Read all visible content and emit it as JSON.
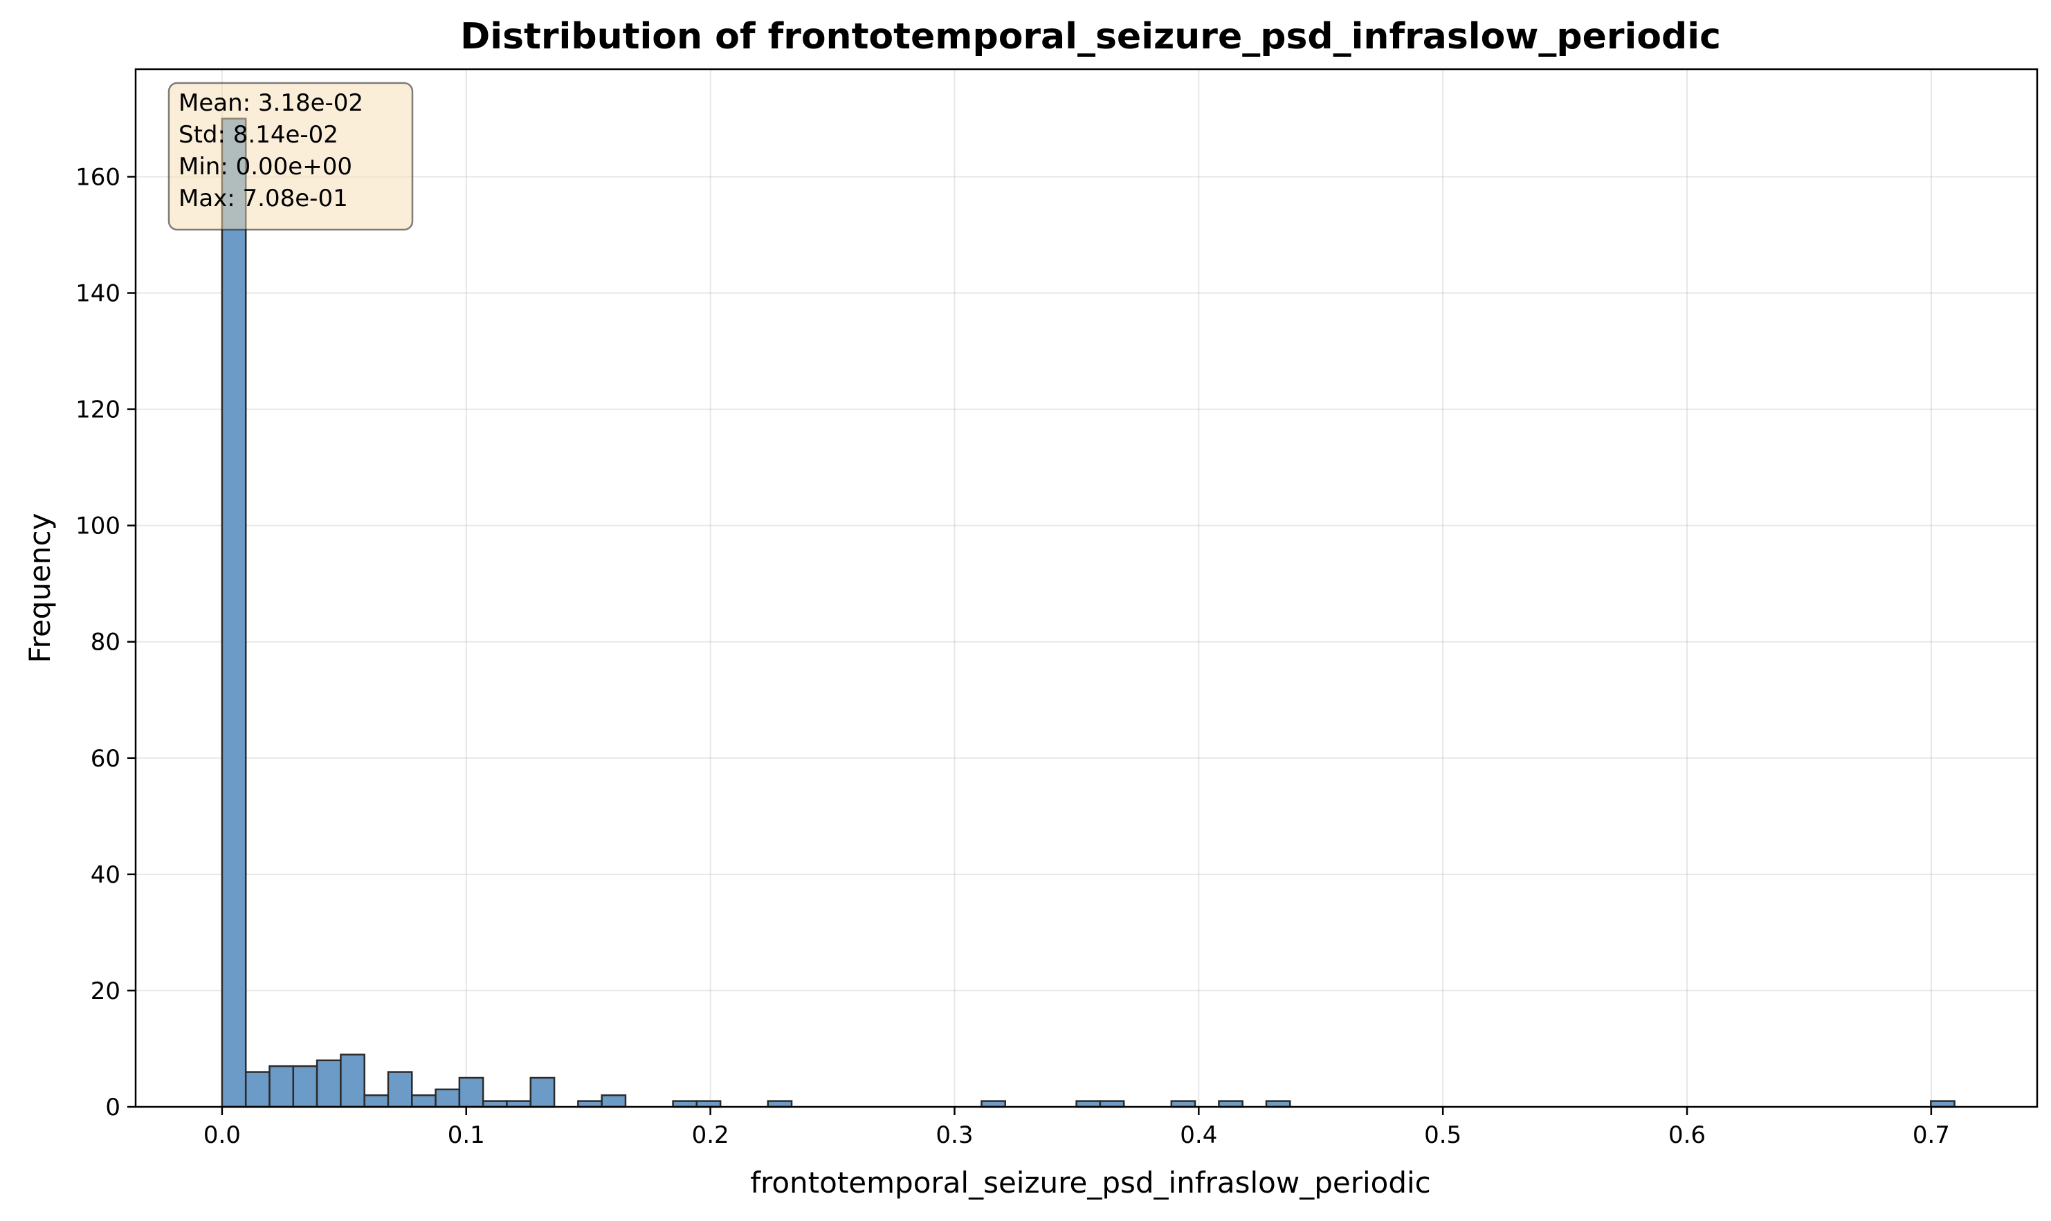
{
  "chart_data": {
    "type": "histogram",
    "title": "Distribution of frontotemporal_seizure_psd_infraslow_periodic",
    "xlabel": "frontotemporal_seizure_psd_infraslow_periodic",
    "ylabel": "Frequency",
    "xlim": [
      -0.0354,
      0.7434
    ],
    "ylim": [
      0,
      178.5
    ],
    "x_ticks": [
      0.0,
      0.1,
      0.2,
      0.3,
      0.4,
      0.5,
      0.6,
      0.7
    ],
    "x_tick_labels": [
      "0.0",
      "0.1",
      "0.2",
      "0.3",
      "0.4",
      "0.5",
      "0.6",
      "0.7"
    ],
    "y_ticks": [
      0,
      20,
      40,
      60,
      80,
      100,
      120,
      140,
      160
    ],
    "y_tick_labels": [
      "0",
      "20",
      "40",
      "60",
      "80",
      "100",
      "120",
      "140",
      "160"
    ],
    "grid": true,
    "bar_color": "#6d9bc7",
    "bar_edge_color": "#2b2b2b",
    "bin_width": 0.00972,
    "bin_start": 0.0,
    "counts": [
      170,
      6,
      7,
      7,
      8,
      9,
      2,
      6,
      2,
      3,
      5,
      1,
      1,
      5,
      0,
      1,
      2,
      0,
      0,
      1,
      1,
      0,
      0,
      1,
      0,
      0,
      0,
      0,
      0,
      0,
      0,
      0,
      1,
      0,
      0,
      0,
      1,
      1,
      0,
      0,
      1,
      0,
      1,
      0,
      1,
      0,
      0,
      0,
      0,
      0,
      0,
      0,
      0,
      0,
      0,
      0,
      0,
      0,
      0,
      0,
      0,
      0,
      0,
      0,
      0,
      0,
      0,
      0,
      0,
      0,
      0,
      0,
      1
    ],
    "stats_box": {
      "lines": [
        "Mean: 3.18e-02",
        "Std: 8.14e-02",
        "Min: 0.00e+00",
        "Max: 7.08e-01"
      ],
      "background": "#f5deb3",
      "placement": "top-left"
    }
  }
}
